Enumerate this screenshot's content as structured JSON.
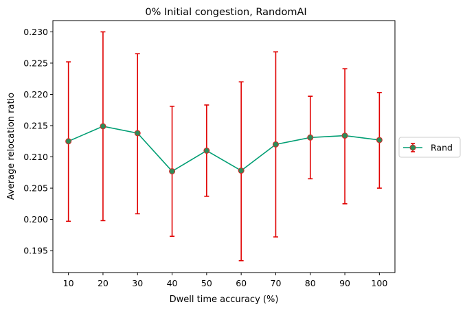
{
  "chart_data": {
    "type": "line",
    "title": "0% Initial congestion, RandomAI",
    "xlabel": "Dwell time accuracy (%)",
    "ylabel": "Average relocation ratio",
    "x": [
      10,
      20,
      30,
      40,
      50,
      60,
      70,
      80,
      90,
      100
    ],
    "x_ticks": [
      "10",
      "20",
      "30",
      "40",
      "50",
      "60",
      "70",
      "80",
      "90",
      "100"
    ],
    "y_ticks": [
      "0.195",
      "0.200",
      "0.205",
      "0.210",
      "0.215",
      "0.220",
      "0.225",
      "0.230"
    ],
    "xlim": [
      5.5,
      104.5
    ],
    "ylim": [
      0.1915,
      0.2318
    ],
    "grid": false,
    "legend_position": "outside-right",
    "series": [
      {
        "name": "Rand",
        "values": [
          0.2125,
          0.2149,
          0.2138,
          0.2077,
          0.211,
          0.2078,
          0.212,
          0.2131,
          0.2134,
          0.2127
        ],
        "err_low": [
          0.1997,
          0.1998,
          0.2009,
          0.1973,
          0.2037,
          0.1934,
          0.1972,
          0.2065,
          0.2025,
          0.205
        ],
        "err_high": [
          0.2252,
          0.23,
          0.2265,
          0.2181,
          0.2183,
          0.222,
          0.2268,
          0.2197,
          0.2241,
          0.2203
        ],
        "line_color": "#009E73",
        "marker_color": "#2E8B57",
        "marker_edge": "#D62728",
        "error_color": "#E00000"
      }
    ]
  }
}
